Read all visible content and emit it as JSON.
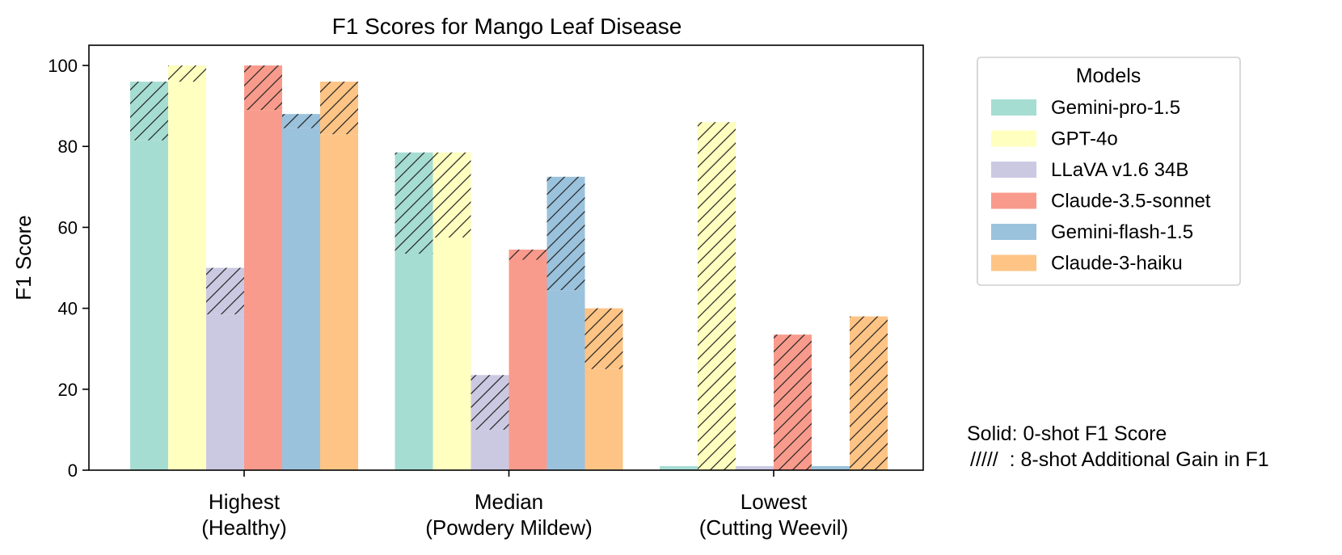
{
  "chart_data": {
    "type": "bar",
    "title": "F1 Scores for Mango Leaf Disease",
    "ylabel": "F1 Score",
    "xlabel": "",
    "ylim": [
      0,
      105
    ],
    "yticks": [
      0,
      20,
      40,
      60,
      80,
      100
    ],
    "categories": [
      {
        "line1": "Highest",
        "line2": "(Healthy)"
      },
      {
        "line1": "Median",
        "line2": "(Powdery Mildew)"
      },
      {
        "line1": "Lowest",
        "line2": "(Cutting Weevil)"
      }
    ],
    "series": [
      {
        "name": "Gemini-pro-1.5",
        "color": "#a6ddd3",
        "zero_shot": [
          81.5,
          53.5,
          1.0
        ],
        "eight_shot": [
          96.0,
          78.5,
          1.0
        ]
      },
      {
        "name": "GPT-4o",
        "color": "#ffffc0",
        "zero_shot": [
          96.0,
          57.5,
          0.0
        ],
        "eight_shot": [
          100.0,
          78.5,
          86.0
        ]
      },
      {
        "name": "LLaVA v1.6 34B",
        "color": "#cbc9e2",
        "zero_shot": [
          38.5,
          10.0,
          1.0
        ],
        "eight_shot": [
          50.0,
          23.5,
          1.0
        ]
      },
      {
        "name": "Claude-3.5-sonnet",
        "color": "#f99b8c",
        "zero_shot": [
          89.0,
          52.0,
          0.0
        ],
        "eight_shot": [
          100.0,
          54.5,
          33.5
        ]
      },
      {
        "name": "Gemini-flash-1.5",
        "color": "#9bc2dc",
        "zero_shot": [
          84.5,
          44.5,
          1.0
        ],
        "eight_shot": [
          88.0,
          72.5,
          1.0
        ]
      },
      {
        "name": "Claude-3-haiku",
        "color": "#fdc485",
        "zero_shot": [
          83.0,
          25.0,
          0.0
        ],
        "eight_shot": [
          96.0,
          40.0,
          38.0
        ]
      }
    ],
    "legend": {
      "title": "Models",
      "placement": "right"
    },
    "grid": false,
    "annotation": {
      "line1": "Solid: 0-shot F1 Score",
      "line2": "/////  : 8-shot Additional Gain in F1"
    }
  }
}
